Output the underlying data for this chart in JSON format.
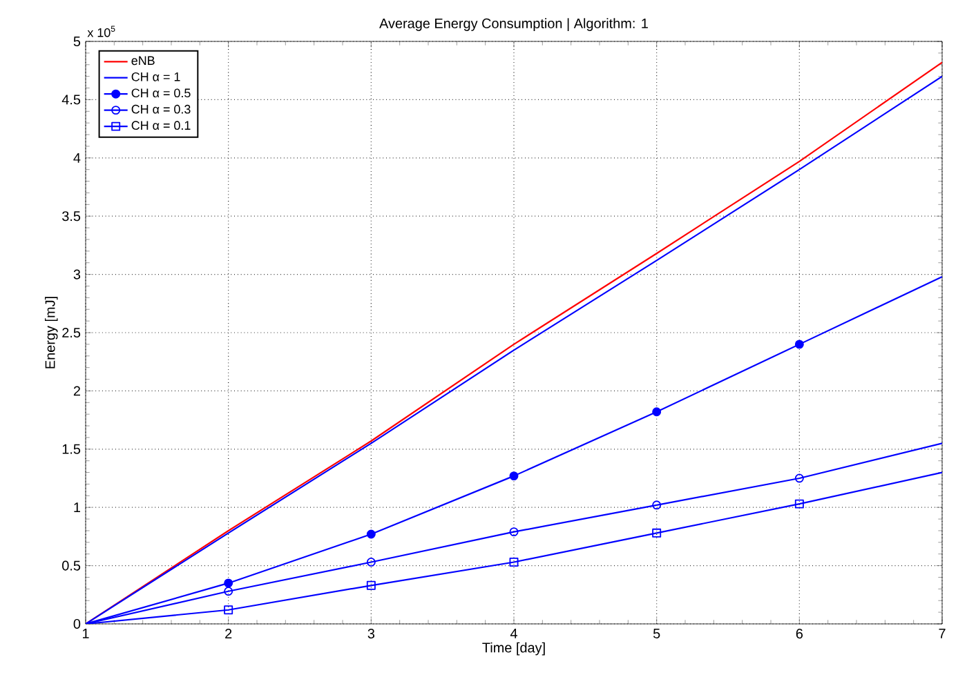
{
  "chart_data": {
    "type": "line",
    "title": "Average Energy Consumption | Algorithm: 1",
    "xlabel": "Time [day]",
    "ylabel": "Energy [mJ]",
    "annotations": [
      "x 10$^{5}$"
    ],
    "x": [
      1,
      2,
      3,
      4,
      5,
      6,
      7
    ],
    "xlim": [
      1,
      7
    ],
    "xticks": [
      1,
      2,
      3,
      4,
      5,
      6,
      7
    ],
    "ylim": [
      0,
      5
    ],
    "yticks": [
      0,
      0.5,
      1,
      1.5,
      2,
      2.5,
      3,
      3.5,
      4,
      4.5,
      5
    ],
    "grid": true,
    "legend": "top left",
    "line_style": "solid",
    "series": [
      {
        "name": "eNB",
        "color": "#ff0000",
        "marker": "none",
        "values": [
          0,
          0.8,
          1.57,
          2.4,
          3.18,
          3.97,
          4.82
        ]
      },
      {
        "name": "CH  α = 1",
        "color": "#0000ff",
        "marker": "none",
        "values": [
          0,
          0.78,
          1.55,
          2.35,
          3.12,
          3.9,
          4.7
        ]
      },
      {
        "name": "CH  α = 0.5",
        "color": "#0000ff",
        "marker": "circle",
        "values": [
          0,
          0.35,
          0.77,
          1.27,
          1.82,
          2.4,
          2.98
        ]
      },
      {
        "name": "CH  α = 0.3",
        "color": "#0000ff",
        "marker": "circle-open",
        "values": [
          0,
          0.28,
          0.53,
          0.79,
          1.02,
          1.25,
          1.55
        ]
      },
      {
        "name": "CH  α = 0.1",
        "color": "#0000ff",
        "marker": "square-open",
        "values": [
          0,
          0.12,
          0.33,
          0.53,
          0.78,
          1.03,
          1.3
        ]
      }
    ]
  }
}
